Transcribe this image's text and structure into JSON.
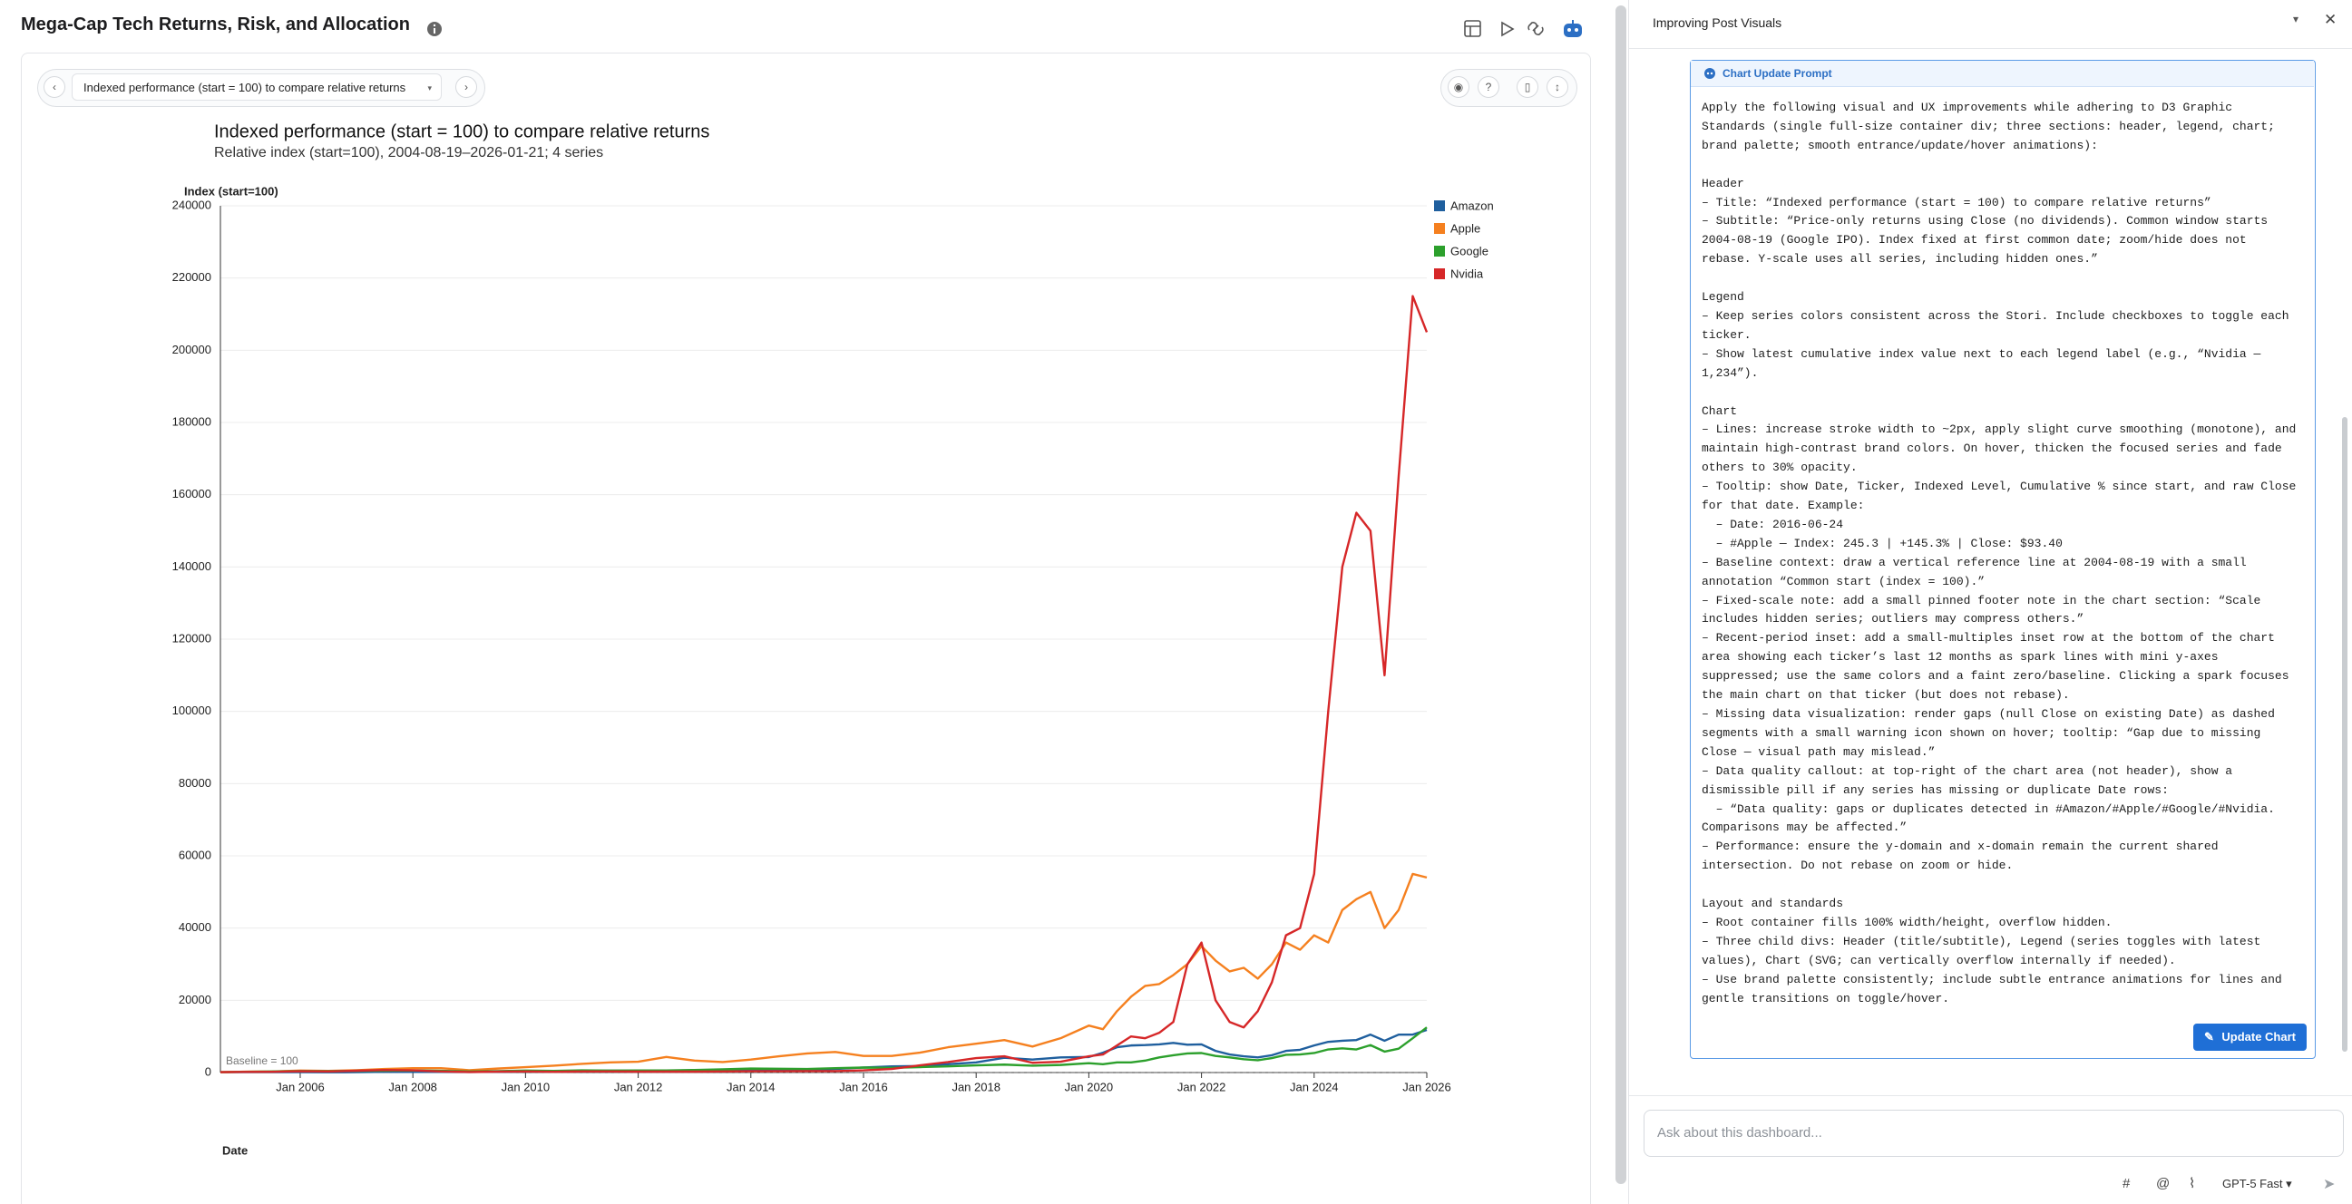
{
  "header": {
    "title": "Mega-Cap Tech Returns, Risk, and Allocation"
  },
  "toolbar": {
    "view": "Indexed performance (start = 100) to compare relative returns"
  },
  "chart_data": {
    "type": "line",
    "title": "Indexed performance (start = 100) to compare relative returns",
    "subtitle": "Relative index (start=100), 2004-08-19–2026-01-21; 4 series",
    "y_label": "Index (start=100)",
    "x_label": "Date",
    "grid": true,
    "legend": "top-right",
    "baseline": {
      "label": "Baseline = 100",
      "value": 100
    },
    "x": [
      "2004-08",
      "2005-01",
      "2005-07",
      "2006-01",
      "2006-07",
      "2007-01",
      "2007-07",
      "2008-01",
      "2008-07",
      "2009-01",
      "2009-07",
      "2010-01",
      "2010-07",
      "2011-01",
      "2011-07",
      "2012-01",
      "2012-07",
      "2013-01",
      "2013-07",
      "2014-01",
      "2014-07",
      "2015-01",
      "2015-07",
      "2016-01",
      "2016-07",
      "2017-01",
      "2017-07",
      "2018-01",
      "2018-07",
      "2019-01",
      "2019-07",
      "2020-01",
      "2020-04",
      "2020-07",
      "2020-10",
      "2021-01",
      "2021-04",
      "2021-07",
      "2021-10",
      "2022-01",
      "2022-04",
      "2022-07",
      "2022-10",
      "2023-01",
      "2023-04",
      "2023-07",
      "2023-10",
      "2024-01",
      "2024-04",
      "2024-07",
      "2024-10",
      "2025-01",
      "2025-04",
      "2025-07",
      "2025-10",
      "2026-01"
    ],
    "xlim": [
      "2004-08",
      "2026-01"
    ],
    "xticks": [
      {
        "value": "2006-01",
        "label": "Jan 2006"
      },
      {
        "value": "2008-01",
        "label": "Jan 2008"
      },
      {
        "value": "2010-01",
        "label": "Jan 2010"
      },
      {
        "value": "2012-01",
        "label": "Jan 2012"
      },
      {
        "value": "2014-01",
        "label": "Jan 2014"
      },
      {
        "value": "2016-01",
        "label": "Jan 2016"
      },
      {
        "value": "2018-01",
        "label": "Jan 2018"
      },
      {
        "value": "2020-01",
        "label": "Jan 2020"
      },
      {
        "value": "2022-01",
        "label": "Jan 2022"
      },
      {
        "value": "2024-01",
        "label": "Jan 2024"
      },
      {
        "value": "2026-01",
        "label": "Jan 2026"
      }
    ],
    "ylim": [
      0,
      240000
    ],
    "yticks": [
      0,
      20000,
      40000,
      60000,
      80000,
      100000,
      120000,
      140000,
      160000,
      180000,
      200000,
      220000,
      240000
    ],
    "series": [
      {
        "name": "Amazon",
        "color": "#1f5f9e",
        "values": [
          100,
          100,
          100,
          110,
          80,
          100,
          200,
          180,
          180,
          130,
          200,
          300,
          280,
          400,
          500,
          440,
          540,
          620,
          700,
          900,
          740,
          720,
          1000,
          1400,
          1700,
          1800,
          2300,
          2800,
          4100,
          3600,
          4200,
          4300,
          5500,
          7000,
          7500,
          7600,
          7800,
          8200,
          7700,
          7800,
          6000,
          5000,
          4500,
          4200,
          4800,
          6000,
          6300,
          7500,
          8500,
          8800,
          9000,
          10500,
          8800,
          10500,
          10500,
          11800
        ]
      },
      {
        "name": "Apple",
        "color": "#f5801f",
        "values": [
          100,
          220,
          300,
          550,
          450,
          650,
          1000,
          1200,
          1200,
          650,
          1100,
          1500,
          1900,
          2400,
          2800,
          3000,
          4300,
          3300,
          2900,
          3600,
          4500,
          5300,
          5700,
          4600,
          4600,
          5500,
          7000,
          8000,
          9000,
          7200,
          9500,
          13000,
          12000,
          17000,
          21000,
          24000,
          24500,
          27000,
          30000,
          35000,
          31000,
          28000,
          29000,
          26000,
          30000,
          36000,
          34000,
          38000,
          36000,
          45000,
          48000,
          50000,
          40000,
          45000,
          55000,
          54000
        ]
      },
      {
        "name": "Google",
        "color": "#2ca02c",
        "values": [
          100,
          190,
          280,
          430,
          380,
          470,
          510,
          580,
          470,
          300,
          400,
          550,
          450,
          600,
          560,
          580,
          590,
          700,
          880,
          1100,
          1050,
          980,
          1200,
          1380,
          1300,
          1500,
          1700,
          2000,
          2200,
          1900,
          2100,
          2600,
          2300,
          2800,
          2800,
          3300,
          4200,
          4800,
          5300,
          5400,
          4600,
          4200,
          3700,
          3400,
          4000,
          4900,
          5000,
          5400,
          6400,
          6700,
          6400,
          7600,
          5800,
          6600,
          9500,
          12500
        ]
      },
      {
        "name": "Nvidia",
        "color": "#d62728",
        "values": [
          100,
          180,
          200,
          350,
          300,
          500,
          700,
          600,
          300,
          150,
          250,
          300,
          200,
          300,
          300,
          250,
          250,
          250,
          300,
          350,
          350,
          400,
          400,
          600,
          1000,
          2000,
          2900,
          4000,
          4500,
          2700,
          3000,
          4500,
          5000,
          7500,
          10000,
          9500,
          11000,
          14000,
          30000,
          36000,
          20000,
          14000,
          12500,
          17000,
          25000,
          38000,
          40000,
          55000,
          100000,
          140000,
          155000,
          150000,
          110000,
          165000,
          215000,
          205000
        ]
      }
    ]
  },
  "side_panel": {
    "title": "Improving Post Visuals",
    "prompt_title": "Chart Update Prompt",
    "prompt_blocks": [
      [
        "Apply the following visual and UX improvements while adhering to D3 Graphic",
        "Standards (single full-size container div; three sections: header, legend, chart;",
        "brand palette; smooth entrance/update/hover animations):"
      ],
      [
        "Header",
        "– Title: “Indexed performance (start = 100) to compare relative returns”",
        "– Subtitle: “Price-only returns using Close (no dividends). Common window starts",
        "2004-08-19 (Google IPO). Index fixed at first common date; zoom/hide does not",
        "rebase. Y-scale uses all series, including hidden ones.”"
      ],
      [
        "Legend",
        "– Keep series colors consistent across the Stori. Include checkboxes to toggle each",
        "ticker.",
        "– Show latest cumulative index value next to each legend label (e.g., “Nvidia —",
        "1,234”)."
      ],
      [
        "Chart",
        "– Lines: increase stroke width to ~2px, apply slight curve smoothing (monotone), and",
        "maintain high-contrast brand colors. On hover, thicken the focused series and fade",
        "others to 30% opacity.",
        "– Tooltip: show Date, Ticker, Indexed Level, Cumulative % since start, and raw Close",
        "for that date. Example:",
        "  – Date: 2016-06-24",
        "  – #Apple — Index: 245.3 | +145.3% | Close: $93.40",
        "– Baseline context: draw a vertical reference line at 2004-08-19 with a small",
        "annotation “Common start (index = 100).”",
        "– Fixed-scale note: add a small pinned footer note in the chart section: “Scale",
        "includes hidden series; outliers may compress others.”",
        "– Recent-period inset: add a small-multiples inset row at the bottom of the chart",
        "area showing each ticker’s last 12 months as spark lines with mini y-axes",
        "suppressed; use the same colors and a faint zero/baseline. Clicking a spark focuses",
        "the main chart on that ticker (but does not rebase).",
        "– Missing data visualization: render gaps (null Close on existing Date) as dashed",
        "segments with a small warning icon shown on hover; tooltip: “Gap due to missing",
        "Close — visual path may mislead.”",
        "– Data quality callout: at top-right of the chart area (not header), show a",
        "dismissible pill if any series has missing or duplicate Date rows:",
        "  – “Data quality: gaps or duplicates detected in #Amazon/#Apple/#Google/#Nvidia.",
        "Comparisons may be affected.”",
        "– Performance: ensure the y-domain and x-domain remain the current shared",
        "intersection. Do not rebase on zoom or hide."
      ],
      [
        "Layout and standards",
        "– Root container fills 100% width/height, overflow hidden.",
        "– Three child divs: Header (title/subtitle), Legend (series toggles with latest",
        "values), Chart (SVG; can vertically overflow internally if needed).",
        "– Use brand palette consistently; include subtle entrance animations for lines and",
        "gentle transitions on toggle/hover."
      ]
    ],
    "button": "Update Chart",
    "input_placeholder": "Ask about this dashboard...",
    "model": "GPT-5 Fast"
  }
}
